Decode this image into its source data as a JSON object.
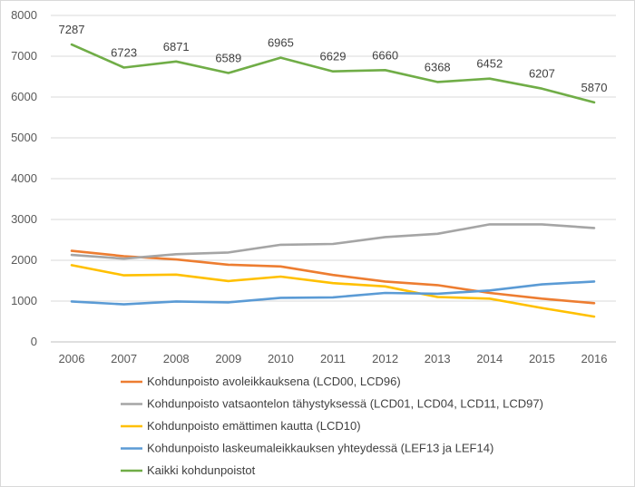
{
  "chart_data": {
    "type": "line",
    "title": "",
    "xlabel": "",
    "ylabel": "",
    "ylim": [
      0,
      8000
    ],
    "y_ticks": [
      "0",
      "1000",
      "2000",
      "3000",
      "4000",
      "5000",
      "6000",
      "7000",
      "8000"
    ],
    "categories": [
      "2006",
      "2007",
      "2008",
      "2009",
      "2010",
      "2011",
      "2012",
      "2013",
      "2014",
      "2015",
      "2016"
    ],
    "grid": "horizontal",
    "legend_position": "bottom",
    "series": [
      {
        "name": "Kohdunpoisto avoleikkauksena (LCD00, LCD96)",
        "color": "#ED7D31",
        "values": [
          2230,
          2100,
          2020,
          1890,
          1850,
          1640,
          1480,
          1390,
          1200,
          1060,
          950
        ]
      },
      {
        "name": "Kohdunpoisto vatsaontelon tähystyksessä (LCD01, LCD04, LCD11, LCD97)",
        "color": "#A5A5A5",
        "values": [
          2130,
          2040,
          2150,
          2190,
          2380,
          2400,
          2570,
          2650,
          2880,
          2880,
          2790
        ]
      },
      {
        "name": "Kohdunpoisto emättimen kautta (LCD10)",
        "color": "#FFC000",
        "values": [
          1880,
          1630,
          1650,
          1490,
          1600,
          1440,
          1360,
          1100,
          1060,
          830,
          620
        ]
      },
      {
        "name": "Kohdunpoisto laskeumaleikkauksen yhteydessä (LEF13 ja LEF14)",
        "color": "#5B9BD5",
        "values": [
          990,
          920,
          990,
          970,
          1080,
          1090,
          1200,
          1180,
          1260,
          1410,
          1480
        ]
      },
      {
        "name": "Kaikki kohdunpoistot",
        "color": "#70AD47",
        "values": [
          7287,
          6723,
          6871,
          6589,
          6965,
          6629,
          6660,
          6368,
          6452,
          6207,
          5870
        ],
        "data_labels": [
          "7287",
          "6723",
          "6871",
          "6589",
          "6965",
          "6629",
          "6660",
          "6368",
          "6452",
          "6207",
          "5870"
        ]
      }
    ]
  }
}
